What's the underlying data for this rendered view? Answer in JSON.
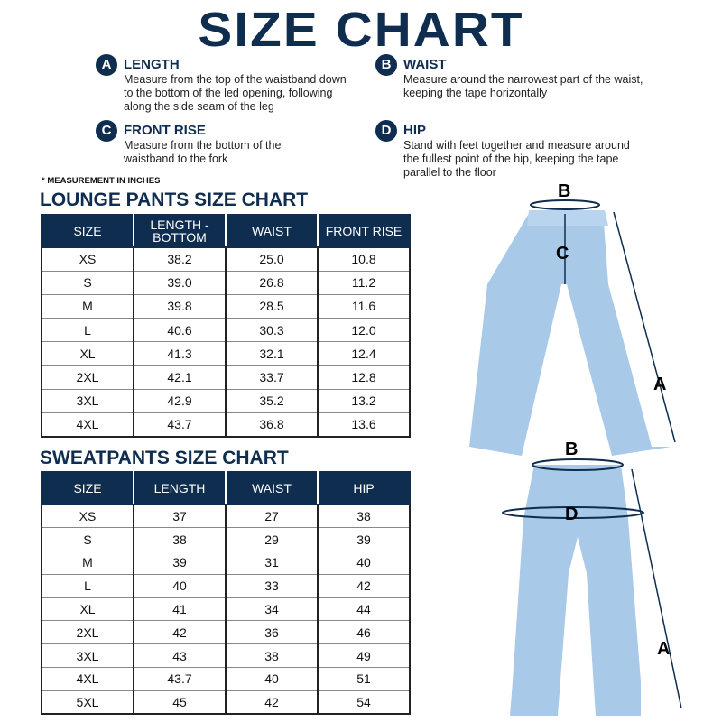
{
  "title": "SIZE CHART",
  "definitions": [
    {
      "letter": "A",
      "name": "LENGTH",
      "text": "Measure from the top of the waistband down to the bottom of the led opening, following along the side seam of the leg"
    },
    {
      "letter": "B",
      "name": "WAIST",
      "text": "Measure around the narrowest part of the waist, keeping the tape horizontally"
    },
    {
      "letter": "C",
      "name": "FRONT RISE",
      "text": "Measure from the bottom of the waistband to the fork"
    },
    {
      "letter": "D",
      "name": "HIP",
      "text": "Stand with feet together and measure around the fullest point of the hip, keeping the tape parallel to the floor"
    }
  ],
  "note": "* MEASUREMENT IN INCHES",
  "lounge": {
    "title": "LOUNGE PANTS SIZE CHART",
    "headers": [
      "SIZE",
      "LENGTH - BOTTOM",
      "WAIST",
      "FRONT RISE"
    ],
    "rows": [
      [
        "XS",
        "38.2",
        "25.0",
        "10.8"
      ],
      [
        "S",
        "39.0",
        "26.8",
        "11.2"
      ],
      [
        "M",
        "39.8",
        "28.5",
        "11.6"
      ],
      [
        "L",
        "40.6",
        "30.3",
        "12.0"
      ],
      [
        "XL",
        "41.3",
        "32.1",
        "12.4"
      ],
      [
        "2XL",
        "42.1",
        "33.7",
        "12.8"
      ],
      [
        "3XL",
        "42.9",
        "35.2",
        "13.2"
      ],
      [
        "4XL",
        "43.7",
        "36.8",
        "13.6"
      ]
    ]
  },
  "sweat": {
    "title": "SWEATPANTS SIZE CHART",
    "headers": [
      "SIZE",
      "LENGTH",
      "WAIST",
      "HIP"
    ],
    "rows": [
      [
        "XS",
        "37",
        "27",
        "38"
      ],
      [
        "S",
        "38",
        "29",
        "39"
      ],
      [
        "M",
        "39",
        "31",
        "40"
      ],
      [
        "L",
        "40",
        "33",
        "42"
      ],
      [
        "XL",
        "41",
        "34",
        "44"
      ],
      [
        "2XL",
        "42",
        "36",
        "46"
      ],
      [
        "3XL",
        "43",
        "38",
        "49"
      ],
      [
        "4XL",
        "43.7",
        "40",
        "51"
      ],
      [
        "5XL",
        "45",
        "42",
        "54"
      ]
    ]
  },
  "diagram_labels": {
    "b1": "B",
    "c": "C",
    "a1": "A",
    "b2": "B",
    "d": "D",
    "a2": "A"
  },
  "colors": {
    "navy": "#0f2d4f",
    "pants": "#a9c9e8"
  }
}
